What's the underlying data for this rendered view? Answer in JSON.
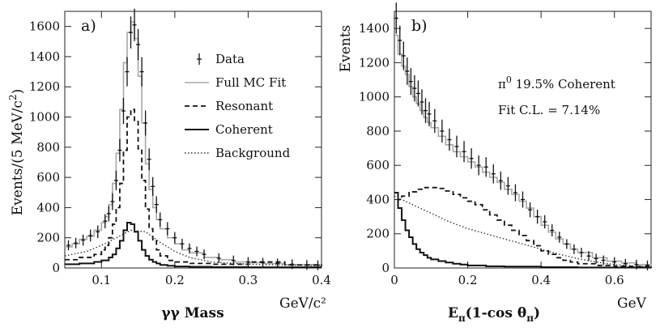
{
  "chart_data": [
    {
      "type": "line",
      "panel_label": "a)",
      "title": "",
      "xlabel": "γγ Mass",
      "xunit": "GeV/c²",
      "ylabel_main": "Events/(5 MeV/c",
      "ylabel_sup": "2",
      "ylabel_end": ")",
      "xlim": [
        0.05,
        0.4
      ],
      "ylim": [
        0,
        1700
      ],
      "xticks": [
        0.1,
        0.2,
        0.3,
        0.4
      ],
      "xtick_labels": [
        "0.1",
        "0.2",
        "0.3",
        "0.4"
      ],
      "yticks": [
        0,
        200,
        400,
        600,
        800,
        1000,
        1200,
        1400,
        1600
      ],
      "ytick_labels": [
        "0",
        "200",
        "400",
        "600",
        "800",
        "1000",
        "1200",
        "1400",
        "1600"
      ],
      "legend": {
        "placement": "right",
        "entries": [
          {
            "label": "Data",
            "style": "errorbar"
          },
          {
            "label": "Full MC Fit",
            "style": "solid-gray"
          },
          {
            "label": "Resonant",
            "style": "dashed"
          },
          {
            "label": "Coherent",
            "style": "solid-thick"
          },
          {
            "label": "Background",
            "style": "dotted"
          }
        ]
      },
      "series": [
        {
          "name": "Full MC Fit",
          "style": "solid-gray",
          "step": true,
          "x": [
            0.05,
            0.06,
            0.07,
            0.08,
            0.09,
            0.1,
            0.105,
            0.11,
            0.115,
            0.12,
            0.125,
            0.13,
            0.135,
            0.14,
            0.145,
            0.15,
            0.155,
            0.16,
            0.165,
            0.17,
            0.175,
            0.18,
            0.19,
            0.2,
            0.21,
            0.22,
            0.24,
            0.26,
            0.28,
            0.3,
            0.32,
            0.35,
            0.4
          ],
          "y": [
            140,
            160,
            190,
            210,
            250,
            300,
            340,
            420,
            560,
            760,
            1050,
            1360,
            1560,
            1630,
            1520,
            1270,
            960,
            690,
            520,
            400,
            320,
            260,
            200,
            160,
            120,
            100,
            70,
            55,
            40,
            35,
            30,
            22,
            18
          ]
        },
        {
          "name": "Data",
          "style": "errorbar",
          "x": [
            0.055,
            0.065,
            0.075,
            0.085,
            0.095,
            0.105,
            0.11,
            0.115,
            0.12,
            0.125,
            0.13,
            0.135,
            0.14,
            0.145,
            0.15,
            0.155,
            0.16,
            0.165,
            0.17,
            0.175,
            0.18,
            0.19,
            0.2,
            0.21,
            0.22,
            0.23,
            0.24,
            0.26,
            0.28,
            0.3,
            0.32,
            0.34,
            0.36,
            0.38,
            0.395
          ],
          "y": [
            150,
            165,
            185,
            215,
            240,
            310,
            360,
            440,
            580,
            780,
            1040,
            1300,
            1560,
            1610,
            1480,
            1300,
            960,
            720,
            540,
            420,
            320,
            260,
            200,
            160,
            130,
            110,
            90,
            65,
            50,
            40,
            35,
            30,
            25,
            20,
            18
          ]
        },
        {
          "name": "Resonant",
          "style": "dashed",
          "step": true,
          "x": [
            0.05,
            0.07,
            0.09,
            0.1,
            0.105,
            0.11,
            0.115,
            0.12,
            0.125,
            0.13,
            0.135,
            0.14,
            0.145,
            0.15,
            0.155,
            0.16,
            0.165,
            0.17,
            0.175,
            0.18,
            0.19,
            0.2,
            0.22,
            0.25,
            0.3,
            0.35,
            0.4
          ],
          "y": [
            55,
            70,
            90,
            120,
            150,
            200,
            290,
            400,
            560,
            780,
            1000,
            1050,
            970,
            790,
            580,
            390,
            260,
            180,
            120,
            80,
            50,
            40,
            30,
            25,
            40,
            20,
            12
          ]
        },
        {
          "name": "Coherent",
          "style": "solid-thick",
          "step": true,
          "x": [
            0.05,
            0.07,
            0.09,
            0.1,
            0.11,
            0.115,
            0.12,
            0.125,
            0.13,
            0.135,
            0.14,
            0.145,
            0.15,
            0.155,
            0.16,
            0.165,
            0.17,
            0.175,
            0.18,
            0.19,
            0.2,
            0.22,
            0.25,
            0.3,
            0.4
          ],
          "y": [
            25,
            30,
            40,
            50,
            70,
            90,
            130,
            180,
            250,
            300,
            290,
            240,
            180,
            120,
            80,
            55,
            40,
            30,
            20,
            15,
            10,
            8,
            6,
            5,
            5
          ]
        },
        {
          "name": "Background",
          "style": "dotted",
          "x": [
            0.05,
            0.08,
            0.1,
            0.12,
            0.14,
            0.16,
            0.18,
            0.2,
            0.22,
            0.25,
            0.3,
            0.35,
            0.4
          ],
          "y": [
            80,
            110,
            150,
            200,
            250,
            240,
            170,
            110,
            70,
            40,
            25,
            20,
            15
          ]
        }
      ]
    },
    {
      "type": "line",
      "panel_label": "b)",
      "title": "",
      "xlabel_main": "E",
      "xlabel_sub1": "π",
      "xlabel_mid": "(1-cos θ",
      "xlabel_sub2": "π",
      "xlabel_end": ")",
      "xunit": "GeV",
      "ylabel": "Events",
      "xlim": [
        0,
        0.7
      ],
      "ylim": [
        0,
        1500
      ],
      "xticks": [
        0,
        0.2,
        0.4,
        0.6
      ],
      "xtick_labels": [
        "0",
        "0.2",
        "0.4",
        "0.6"
      ],
      "yticks": [
        0,
        200,
        400,
        600,
        800,
        1000,
        1200,
        1400
      ],
      "ytick_labels": [
        "0",
        "200",
        "400",
        "600",
        "800",
        "1000",
        "1200",
        "1400"
      ],
      "annotations": [
        {
          "text_main": "π",
          "text_sup": "0",
          "text_rest": " 19.5% Coherent"
        },
        {
          "text": "Fit C.L. = 7.14%"
        }
      ],
      "series": [
        {
          "name": "Full MC Fit",
          "style": "solid-gray",
          "step": true,
          "x": [
            0,
            0.01,
            0.02,
            0.03,
            0.04,
            0.05,
            0.06,
            0.07,
            0.08,
            0.09,
            0.1,
            0.12,
            0.14,
            0.16,
            0.18,
            0.2,
            0.22,
            0.24,
            0.26,
            0.28,
            0.3,
            0.32,
            0.34,
            0.36,
            0.38,
            0.4,
            0.42,
            0.44,
            0.46,
            0.48,
            0.5,
            0.54,
            0.58,
            0.62,
            0.66,
            0.7
          ],
          "y": [
            1360,
            1250,
            1180,
            1130,
            1060,
            1000,
            960,
            920,
            880,
            850,
            820,
            770,
            720,
            680,
            650,
            620,
            590,
            560,
            530,
            500,
            460,
            430,
            390,
            350,
            300,
            250,
            210,
            170,
            140,
            110,
            90,
            60,
            40,
            30,
            20,
            15
          ]
        },
        {
          "name": "Data",
          "style": "errorbar",
          "x": [
            0.005,
            0.015,
            0.025,
            0.035,
            0.045,
            0.055,
            0.065,
            0.075,
            0.085,
            0.095,
            0.11,
            0.13,
            0.15,
            0.17,
            0.19,
            0.21,
            0.23,
            0.25,
            0.27,
            0.29,
            0.31,
            0.33,
            0.35,
            0.37,
            0.39,
            0.41,
            0.43,
            0.45,
            0.47,
            0.49,
            0.51,
            0.53,
            0.55,
            0.57,
            0.6,
            0.63,
            0.66,
            0.69
          ],
          "y": [
            1460,
            1330,
            1240,
            1150,
            1090,
            1050,
            1020,
            970,
            920,
            900,
            860,
            800,
            750,
            710,
            680,
            640,
            600,
            590,
            550,
            510,
            480,
            440,
            400,
            340,
            300,
            270,
            220,
            180,
            140,
            110,
            90,
            70,
            55,
            45,
            35,
            25,
            20,
            15
          ]
        },
        {
          "name": "Resonant",
          "style": "dashed",
          "step": true,
          "x": [
            0,
            0.01,
            0.02,
            0.04,
            0.06,
            0.08,
            0.1,
            0.12,
            0.14,
            0.16,
            0.18,
            0.2,
            0.22,
            0.24,
            0.26,
            0.28,
            0.3,
            0.32,
            0.34,
            0.36,
            0.38,
            0.4,
            0.42,
            0.44,
            0.46,
            0.48,
            0.5,
            0.55,
            0.6,
            0.65,
            0.7
          ],
          "y": [
            440,
            400,
            420,
            445,
            460,
            470,
            470,
            465,
            450,
            430,
            410,
            390,
            370,
            340,
            310,
            280,
            250,
            220,
            190,
            160,
            130,
            100,
            80,
            60,
            45,
            35,
            25,
            15,
            10,
            8,
            5
          ]
        },
        {
          "name": "Coherent",
          "style": "solid-thick",
          "step": true,
          "x": [
            0,
            0.01,
            0.02,
            0.03,
            0.04,
            0.05,
            0.06,
            0.07,
            0.08,
            0.09,
            0.1,
            0.12,
            0.14,
            0.16,
            0.18,
            0.2,
            0.25,
            0.3,
            0.4,
            0.5,
            0.7
          ],
          "y": [
            440,
            350,
            280,
            220,
            180,
            140,
            110,
            90,
            75,
            60,
            50,
            40,
            32,
            25,
            20,
            15,
            10,
            8,
            5,
            3,
            2
          ]
        },
        {
          "name": "Background",
          "style": "dotted",
          "x": [
            0,
            0.05,
            0.1,
            0.15,
            0.2,
            0.25,
            0.3,
            0.35,
            0.4,
            0.45,
            0.5,
            0.55,
            0.6,
            0.65,
            0.7
          ],
          "y": [
            420,
            370,
            320,
            270,
            230,
            200,
            170,
            140,
            110,
            80,
            55,
            35,
            20,
            12,
            8
          ]
        }
      ]
    }
  ]
}
